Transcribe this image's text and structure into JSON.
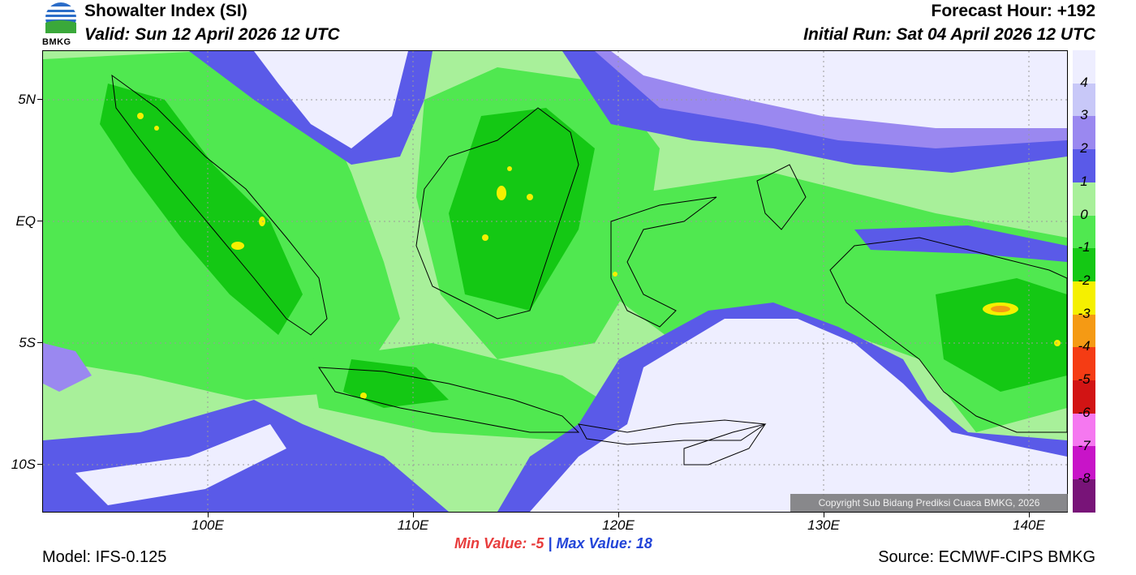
{
  "header": {
    "title": "Showalter Index (SI)",
    "valid": "Valid: Sun 12 April 2026 12 UTC",
    "forecast_hour": "Forecast Hour: +192",
    "initial_run": "Initial Run: Sat 04 April 2026 12 UTC",
    "logo_text": "BMKG"
  },
  "axes": {
    "lat_labels": [
      "5N",
      "EQ",
      "5S",
      "10S"
    ],
    "lon_labels": [
      "100E",
      "110E",
      "120E",
      "130E",
      "140E"
    ]
  },
  "legend": {
    "labels": [
      "4",
      "3",
      "2",
      "1",
      "0",
      "-1",
      "-2",
      "-3",
      "-4",
      "-5",
      "-6",
      "-7",
      "-8"
    ],
    "colors": [
      "#eeeeff",
      "#c8c8f8",
      "#9a88f0",
      "#5a5ae8",
      "#a8f09a",
      "#50e850",
      "#14c814",
      "#f5f000",
      "#f59a14",
      "#f53c14",
      "#d21414",
      "#f578f0",
      "#c814c8",
      "#781478"
    ]
  },
  "map_colors": {
    "very_stable": "#eeeeff",
    "stable_light": "#c8c8f8",
    "stable_mid": "#9a88f0",
    "stable_strong": "#5a5ae8",
    "neutral": "#a8f09a",
    "slightly_unstable": "#50e850",
    "unstable": "#14c814",
    "very_unstable": "#f5f000",
    "extreme": "#f59a14"
  },
  "copyright": "Copyright Sub Bidang Prediksi Cuaca BMKG, 2026",
  "stats": {
    "min_label": "Min Value:",
    "min_value": "-5",
    "separator": "|",
    "max_label": "Max Value:",
    "max_value": "18"
  },
  "footer": {
    "model": "Model: IFS-0.125",
    "source": "Source: ECMWF-CIPS BMKG"
  }
}
